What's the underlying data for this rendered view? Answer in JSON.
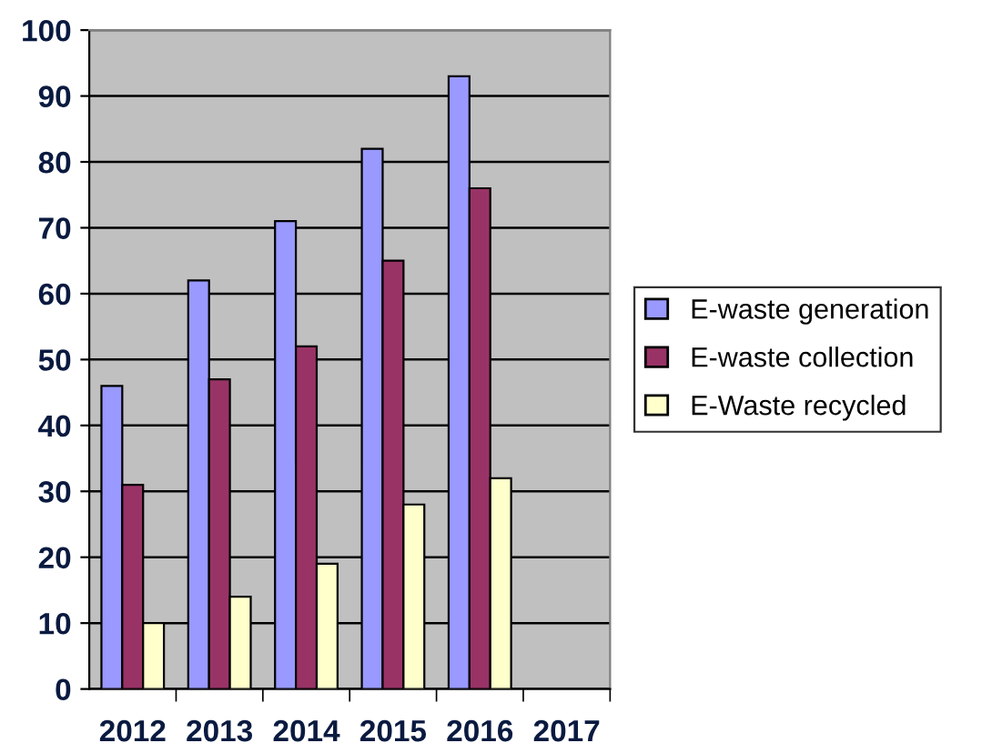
{
  "chart_data": {
    "type": "bar",
    "categories": [
      "2012",
      "2013",
      "2014",
      "2015",
      "2016",
      "2017"
    ],
    "series": [
      {
        "name": "E-waste generation",
        "color": "#9999ff",
        "values": [
          46,
          62,
          71,
          82,
          93,
          null
        ]
      },
      {
        "name": "E-waste collection",
        "color": "#993366",
        "values": [
          31,
          47,
          52,
          65,
          76,
          null
        ]
      },
      {
        "name": "E-Waste recycled",
        "color": "#ffffcc",
        "values": [
          10,
          14,
          19,
          28,
          32,
          null
        ]
      }
    ],
    "ylim": [
      0,
      100
    ],
    "yticks": [
      0,
      10,
      20,
      30,
      40,
      50,
      60,
      70,
      80,
      90,
      100
    ],
    "grid": "y",
    "legend": "right"
  }
}
